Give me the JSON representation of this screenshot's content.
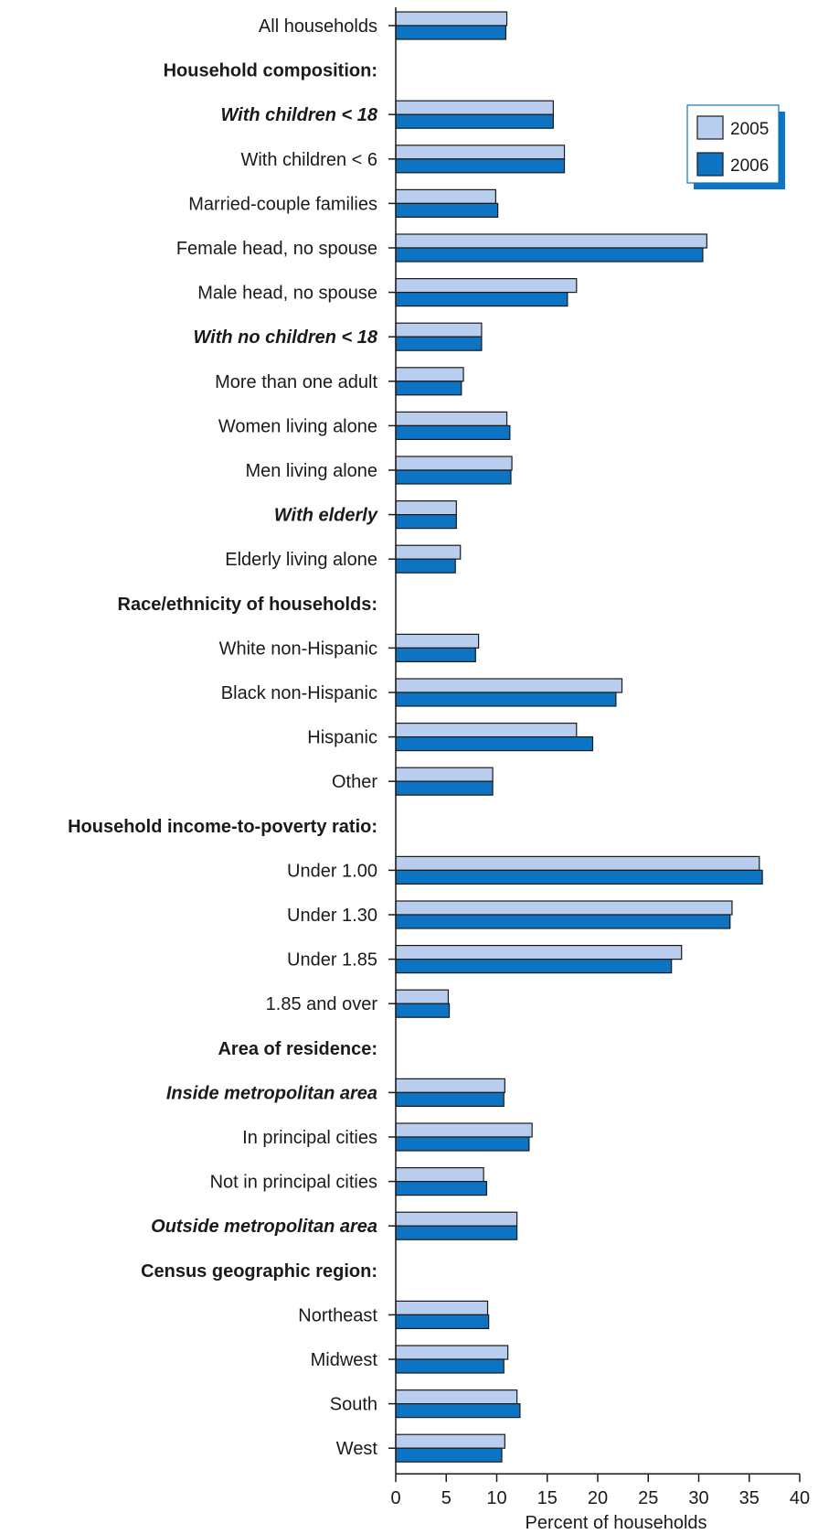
{
  "chart_data": {
    "type": "bar",
    "orientation": "horizontal",
    "xlabel": "Percent of households",
    "xlim": [
      0,
      40
    ],
    "xticks": [
      0,
      5,
      10,
      15,
      20,
      25,
      30,
      35,
      40
    ],
    "grid": false,
    "legend_position": "top-right",
    "series": [
      {
        "name": "2005",
        "color": "#b9cdee"
      },
      {
        "name": "2006",
        "color": "#0c74c2"
      }
    ],
    "rows": [
      {
        "label": "All households",
        "style": "normal",
        "values": [
          11.0,
          10.9
        ]
      },
      {
        "label": "Household composition:",
        "style": "header"
      },
      {
        "label": "With children < 18",
        "style": "subgroup",
        "values": [
          15.6,
          15.6
        ]
      },
      {
        "label": "With children < 6",
        "style": "normal",
        "values": [
          16.7,
          16.7
        ]
      },
      {
        "label": "Married-couple families",
        "style": "normal",
        "values": [
          9.9,
          10.1
        ]
      },
      {
        "label": "Female head, no spouse",
        "style": "normal",
        "values": [
          30.8,
          30.4
        ]
      },
      {
        "label": "Male head, no spouse",
        "style": "normal",
        "values": [
          17.9,
          17.0
        ]
      },
      {
        "label": "With no children < 18",
        "style": "subgroup",
        "values": [
          8.5,
          8.5
        ]
      },
      {
        "label": "More than one adult",
        "style": "normal",
        "values": [
          6.7,
          6.5
        ]
      },
      {
        "label": "Women living alone",
        "style": "normal",
        "values": [
          11.0,
          11.3
        ]
      },
      {
        "label": "Men living alone",
        "style": "normal",
        "values": [
          11.5,
          11.4
        ]
      },
      {
        "label": "With elderly",
        "style": "subgroup",
        "values": [
          6.0,
          6.0
        ]
      },
      {
        "label": "Elderly living alone",
        "style": "normal",
        "values": [
          6.4,
          5.9
        ]
      },
      {
        "label": "Race/ethnicity of households:",
        "style": "header"
      },
      {
        "label": "White non-Hispanic",
        "style": "normal",
        "values": [
          8.2,
          7.9
        ]
      },
      {
        "label": "Black non-Hispanic",
        "style": "normal",
        "values": [
          22.4,
          21.8
        ]
      },
      {
        "label": "Hispanic",
        "style": "normal",
        "values": [
          17.9,
          19.5
        ]
      },
      {
        "label": "Other",
        "style": "normal",
        "values": [
          9.6,
          9.6
        ]
      },
      {
        "label": "Household income-to-poverty ratio:",
        "style": "header"
      },
      {
        "label": "Under 1.00",
        "style": "normal",
        "values": [
          36.0,
          36.3
        ]
      },
      {
        "label": "Under 1.30",
        "style": "normal",
        "values": [
          33.3,
          33.1
        ]
      },
      {
        "label": "Under 1.85",
        "style": "normal",
        "values": [
          28.3,
          27.3
        ]
      },
      {
        "label": "1.85 and over",
        "style": "normal",
        "values": [
          5.2,
          5.3
        ]
      },
      {
        "label": "Area of residence:",
        "style": "header"
      },
      {
        "label": "Inside metropolitan area",
        "style": "subgroup",
        "values": [
          10.8,
          10.7
        ]
      },
      {
        "label": "In principal cities",
        "style": "normal",
        "values": [
          13.5,
          13.2
        ]
      },
      {
        "label": "Not in principal cities",
        "style": "normal",
        "values": [
          8.7,
          9.0
        ]
      },
      {
        "label": "Outside metropolitan area",
        "style": "subgroup",
        "values": [
          12.0,
          12.0
        ]
      },
      {
        "label": "Census geographic region:",
        "style": "header"
      },
      {
        "label": "Northeast",
        "style": "normal",
        "values": [
          9.1,
          9.2
        ]
      },
      {
        "label": "Midwest",
        "style": "normal",
        "values": [
          11.1,
          10.7
        ]
      },
      {
        "label": "South",
        "style": "normal",
        "values": [
          12.0,
          12.3
        ]
      },
      {
        "label": "West",
        "style": "normal",
        "values": [
          10.8,
          10.5
        ]
      }
    ]
  }
}
